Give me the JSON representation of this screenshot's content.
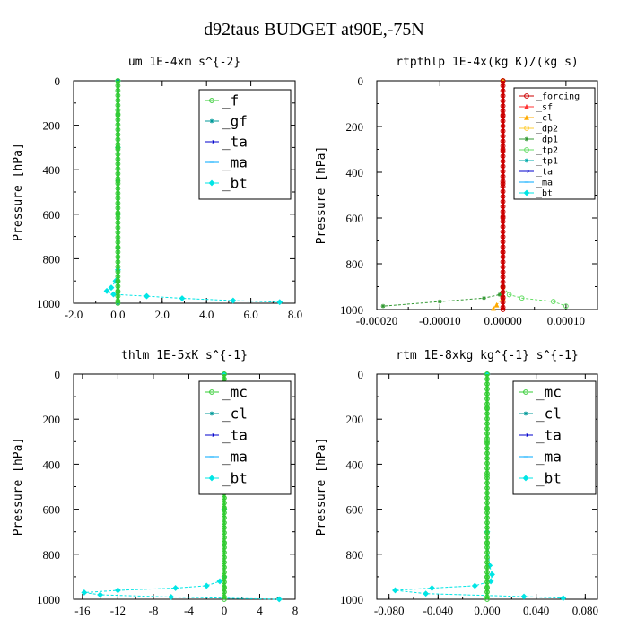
{
  "title": "d92taus  BUDGET at90E,-75N",
  "chart_data": [
    {
      "type": "line",
      "title": "um   1E-4xm s^{-2}",
      "ylabel": "Pressure [hPa]",
      "xlim": [
        -2.0,
        8.0
      ],
      "ylim": [
        1000,
        0
      ],
      "xticks": [
        "-2.0",
        "0.0",
        "2.0",
        "4.0",
        "6.0",
        "8.0"
      ],
      "xtick_values": [
        -2,
        0,
        2,
        4,
        6,
        8
      ],
      "yticks": [
        "0",
        "200",
        "400",
        "600",
        "800",
        "1000"
      ],
      "ytick_values": [
        0,
        200,
        400,
        600,
        800,
        1000
      ],
      "legend": "top-right",
      "series": [
        {
          "name": "_f",
          "color": "#33cc33",
          "marker": "circle"
        },
        {
          "name": "_gf",
          "color": "#009999",
          "marker": "star"
        },
        {
          "name": "_ta",
          "color": "#0000cc",
          "marker": "arrow"
        },
        {
          "name": "_ma",
          "color": "#00aaff",
          "marker": "dash"
        },
        {
          "name": "_bt",
          "color": "#00e5e5",
          "marker": "diamond"
        }
      ],
      "lines": [
        {
          "series": "_bt",
          "x": [
            0,
            0,
            0,
            0,
            -0.1,
            -0.3,
            -0.5,
            -0.2,
            1.3,
            2.9,
            5.2,
            7.3
          ],
          "y": [
            0,
            300,
            600,
            850,
            900,
            930,
            945,
            960,
            968,
            978,
            988,
            995
          ]
        },
        {
          "series": "_gf",
          "x": [
            0,
            0,
            0,
            0,
            0,
            0,
            0,
            0,
            0
          ],
          "y": [
            0,
            150,
            300,
            450,
            600,
            750,
            900,
            950,
            1000
          ]
        },
        {
          "series": "_f",
          "x": [
            0,
            0,
            0,
            0,
            0,
            0,
            0,
            0,
            0
          ],
          "y": [
            0,
            150,
            300,
            450,
            600,
            750,
            900,
            950,
            1000
          ]
        }
      ]
    },
    {
      "type": "line",
      "title": "rtpthlp   1E-4x(kg K)/(kg s)",
      "ylabel": "Pressure [hPa]",
      "xlim": [
        -0.0002,
        0.00015
      ],
      "ylim": [
        1000,
        0
      ],
      "xticks": [
        "-0.00020",
        "-0.00010",
        "0.00000",
        "0.00010"
      ],
      "xtick_values": [
        -0.0002,
        -0.0001,
        0,
        0.0001
      ],
      "yticks": [
        "0",
        "200",
        "400",
        "600",
        "800",
        "1000"
      ],
      "ytick_values": [
        0,
        200,
        400,
        600,
        800,
        1000
      ],
      "legend": "top-right",
      "series": [
        {
          "name": "_forcing",
          "color": "#cc0000",
          "marker": "circle"
        },
        {
          "name": "_sf",
          "color": "#ff3333",
          "marker": "triangle"
        },
        {
          "name": "_cl",
          "color": "#ffaa00",
          "marker": "triangle"
        },
        {
          "name": "_dp2",
          "color": "#ffcc33",
          "marker": "circle"
        },
        {
          "name": "_dp1",
          "color": "#339933",
          "marker": "star"
        },
        {
          "name": "_tp2",
          "color": "#66dd66",
          "marker": "circle"
        },
        {
          "name": "_tp1",
          "color": "#00aaaa",
          "marker": "star"
        },
        {
          "name": "_ta",
          "color": "#0000cc",
          "marker": "arrow"
        },
        {
          "name": "_ma",
          "color": "#00aaff",
          "marker": "dash"
        },
        {
          "name": "_bt",
          "color": "#00e5e5",
          "marker": "diamond"
        }
      ],
      "lines": [
        {
          "series": "_dp1",
          "x": [
            0,
            0,
            -5e-06,
            -3e-05,
            -0.0001,
            -0.00019
          ],
          "y": [
            0,
            900,
            935,
            950,
            965,
            985
          ]
        },
        {
          "series": "_tp2",
          "x": [
            0,
            0,
            1e-05,
            3e-05,
            8e-05,
            0.0001
          ],
          "y": [
            0,
            900,
            935,
            950,
            965,
            985
          ]
        },
        {
          "series": "_cl",
          "x": [
            0,
            0,
            0,
            -1e-05,
            -1.5e-05
          ],
          "y": [
            0,
            900,
            950,
            980,
            995
          ]
        },
        {
          "series": "_forcing",
          "x": [
            0,
            0,
            0,
            0,
            0,
            0,
            0,
            0,
            0
          ],
          "y": [
            0,
            150,
            300,
            450,
            600,
            750,
            900,
            950,
            1000
          ]
        }
      ]
    },
    {
      "type": "line",
      "title": "thlm   1E-5xK s^{-1}",
      "ylabel": "Pressure [hPa]",
      "xlim": [
        -17,
        8
      ],
      "ylim": [
        1000,
        0
      ],
      "xticks": [
        "-16",
        "-12",
        "-8",
        "-4",
        "0",
        "4",
        "8"
      ],
      "xtick_values": [
        -16,
        -12,
        -8,
        -4,
        0,
        4,
        8
      ],
      "yticks": [
        "0",
        "200",
        "400",
        "600",
        "800",
        "1000"
      ],
      "ytick_values": [
        0,
        200,
        400,
        600,
        800,
        1000
      ],
      "legend": "top-right",
      "series": [
        {
          "name": "_mc",
          "color": "#33cc33",
          "marker": "circle"
        },
        {
          "name": "_cl",
          "color": "#009999",
          "marker": "star"
        },
        {
          "name": "_ta",
          "color": "#0000cc",
          "marker": "arrow"
        },
        {
          "name": "_ma",
          "color": "#00aaff",
          "marker": "dash"
        },
        {
          "name": "_bt",
          "color": "#00e5e5",
          "marker": "diamond"
        }
      ],
      "lines": [
        {
          "series": "_bt",
          "x": [
            0,
            0,
            0,
            -0.5,
            -2,
            -5.5,
            -12,
            -15.8,
            -14,
            -6,
            6.2
          ],
          "y": [
            0,
            600,
            900,
            920,
            940,
            950,
            960,
            970,
            980,
            990,
            1000
          ]
        },
        {
          "series": "_mc",
          "x": [
            0,
            0,
            0,
            0,
            0,
            0,
            0,
            0,
            0
          ],
          "y": [
            0,
            150,
            300,
            450,
            600,
            750,
            900,
            950,
            1000
          ]
        }
      ]
    },
    {
      "type": "line",
      "title": "rtm   1E-8xkg kg^{-1} s^{-1}",
      "ylabel": "Pressure [hPa]",
      "xlim": [
        -0.09,
        0.09
      ],
      "ylim": [
        1000,
        0
      ],
      "xticks": [
        "-0.080",
        "-0.040",
        "0.000",
        "0.040",
        "0.080"
      ],
      "xtick_values": [
        -0.08,
        -0.04,
        0,
        0.04,
        0.08
      ],
      "yticks": [
        "0",
        "200",
        "400",
        "600",
        "800",
        "1000"
      ],
      "ytick_values": [
        0,
        200,
        400,
        600,
        800,
        1000
      ],
      "legend": "top-right",
      "series": [
        {
          "name": "_mc",
          "color": "#33cc33",
          "marker": "circle"
        },
        {
          "name": "_cl",
          "color": "#009999",
          "marker": "star"
        },
        {
          "name": "_ta",
          "color": "#0000cc",
          "marker": "arrow"
        },
        {
          "name": "_ma",
          "color": "#00aaff",
          "marker": "dash"
        },
        {
          "name": "_bt",
          "color": "#00e5e5",
          "marker": "diamond"
        }
      ],
      "lines": [
        {
          "series": "_bt",
          "x": [
            0,
            0,
            0.002,
            0.004,
            0.003,
            -0.01,
            -0.045,
            -0.075,
            -0.05,
            0.03,
            0.062
          ],
          "y": [
            0,
            700,
            850,
            890,
            920,
            940,
            950,
            960,
            975,
            988,
            995
          ]
        },
        {
          "series": "_mc",
          "x": [
            0,
            0,
            0,
            0,
            0,
            0,
            0,
            0,
            0
          ],
          "y": [
            0,
            150,
            300,
            450,
            600,
            750,
            900,
            950,
            1000
          ]
        }
      ]
    }
  ]
}
